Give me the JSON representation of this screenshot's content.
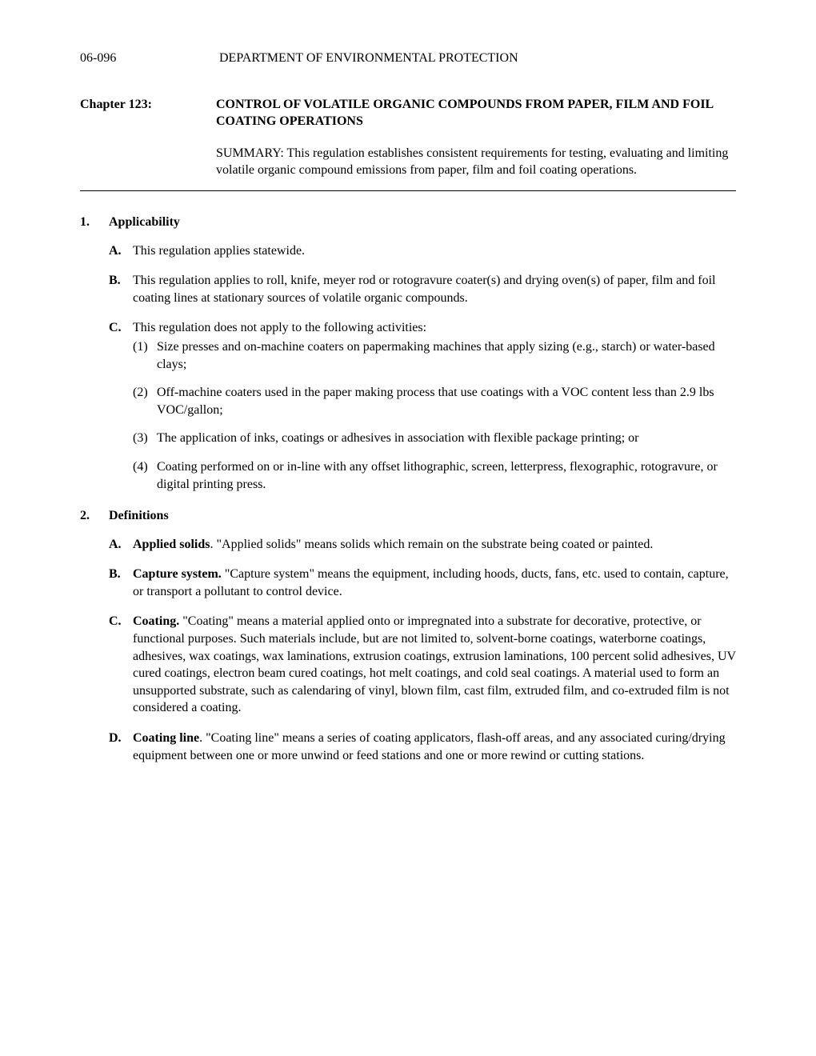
{
  "header": {
    "code": "06-096",
    "department": "DEPARTMENT OF ENVIRONMENTAL PROTECTION"
  },
  "chapter": {
    "label": "Chapter 123:",
    "title": "CONTROL OF VOLATILE ORGANIC COMPOUNDS FROM PAPER, FILM AND FOIL COATING OPERATIONS"
  },
  "summary": {
    "prefix": "SUMMARY:",
    "text": " This regulation establishes consistent requirements for testing, evaluating and limiting volatile organic compound emissions from paper, film and foil coating operations."
  },
  "sections": [
    {
      "num": "1.",
      "title": "Applicability",
      "subs": [
        {
          "letter": "A.",
          "text": "This regulation applies statewide."
        },
        {
          "letter": "B.",
          "text": "This regulation applies to roll, knife, meyer rod or rotogravure coater(s) and drying oven(s) of paper, film and foil coating lines at stationary sources of volatile organic compounds."
        },
        {
          "letter": "C.",
          "text": "This regulation does not apply to the following activities:",
          "items": [
            {
              "num": "(1)",
              "text": "Size presses and on-machine coaters on papermaking machines that apply sizing (e.g., starch) or water-based clays;"
            },
            {
              "num": "(2)",
              "text": "Off-machine coaters used in the paper making process that use coatings with a VOC content less than 2.9 lbs VOC/gallon;"
            },
            {
              "num": "(3)",
              "text": "The application of inks, coatings or adhesives in association with flexible package printing; or"
            },
            {
              "num": "(4)",
              "text": "Coating performed on or in-line with any offset lithographic, screen, letterpress, flexographic, rotogravure, or digital printing press."
            }
          ]
        }
      ]
    },
    {
      "num": "2.",
      "title": "Definitions",
      "subs": [
        {
          "letter": "A.",
          "term": "Applied solids",
          "text": ". \"Applied solids\" means solids which remain on the substrate being coated or painted."
        },
        {
          "letter": "B.",
          "term": "Capture system.",
          "text": " \"Capture system\" means the equipment, including hoods, ducts, fans, etc. used to contain, capture, or transport a pollutant to control device."
        },
        {
          "letter": "C.",
          "term": "Coating.",
          "text": " \"Coating\" means a material applied onto or impregnated into a substrate for decorative, protective, or functional purposes. Such materials include, but are not limited to, solvent-borne coatings, waterborne coatings, adhesives, wax coatings, wax laminations, extrusion coatings, extrusion laminations, 100 percent solid adhesives, UV cured coatings, electron beam cured coatings, hot melt coatings, and cold seal coatings. A material used to form an unsupported substrate, such as calendaring of vinyl, blown film, cast film, extruded film, and co-extruded film is not considered a coating."
        },
        {
          "letter": "D.",
          "term": "Coating line",
          "text": ". \"Coating line\" means a series of coating applicators, flash-off areas, and any associated curing/drying equipment between one or more unwind or feed stations and one or more rewind or cutting stations."
        }
      ]
    }
  ]
}
